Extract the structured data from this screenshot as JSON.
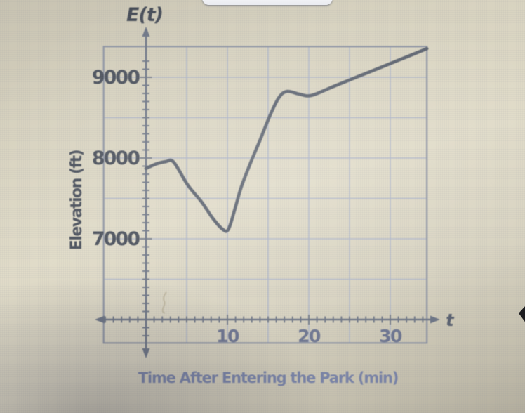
{
  "colors": {
    "paper_beige": "#dcd7c4",
    "grid_blue": "#a9b2c9",
    "plot_border_gray": "#8f95a3",
    "axis_gray": "#6d7585",
    "curve_gray": "#5b626e",
    "tick_label_dark": "#4a505b",
    "tick_label_blue": "#6d7590",
    "axis_title_blue": "#7983a6",
    "pointer_black": "#1c1c1f",
    "card_white": "#ffffff"
  },
  "artifacts": {
    "popup_bottom_edge": "white rounded panel edge cut off at top center",
    "pointer_arrow": "black left-pointing arrow cut off at right edge",
    "pencil_mark": "faint smudge inside grid near t=2.5"
  },
  "chart_data": {
    "type": "line",
    "title": "",
    "y_axis_name": "E(t)",
    "x_axis_name": "t",
    "ylabel": "Elevation (ft)",
    "xlabel": "Time After Entering the Park (min)",
    "x_ticks_major": [
      10,
      20,
      30
    ],
    "y_ticks_major": [
      7000,
      8000,
      9000
    ],
    "x_minor_tick_step": 1,
    "y_minor_tick_step": 100,
    "x_gridline_step": 5,
    "y_gridline_step": 500,
    "x_range_box": [
      -5.2,
      34.5
    ],
    "y_range_box": [
      5710,
      9380
    ],
    "axes_cross_at": {
      "t": 0,
      "elevation_ft": 6000
    },
    "grid": true,
    "legend": false,
    "series": [
      {
        "name": "Elevation over time E(t)",
        "points": [
          [
            0,
            7870
          ],
          [
            1.2,
            7925
          ],
          [
            2.4,
            7955
          ],
          [
            3.4,
            7950
          ],
          [
            5.1,
            7670
          ],
          [
            6.8,
            7460
          ],
          [
            8.2,
            7255
          ],
          [
            9.4,
            7120
          ],
          [
            10.1,
            7115
          ],
          [
            10.9,
            7360
          ],
          [
            11.7,
            7640
          ],
          [
            12.8,
            7930
          ],
          [
            14,
            8220
          ],
          [
            15.2,
            8520
          ],
          [
            16.3,
            8745
          ],
          [
            17.3,
            8825
          ],
          [
            18.8,
            8792
          ],
          [
            20.3,
            8775
          ],
          [
            23,
            8885
          ],
          [
            27,
            9048
          ],
          [
            31,
            9210
          ],
          [
            34.5,
            9355
          ]
        ]
      }
    ]
  }
}
